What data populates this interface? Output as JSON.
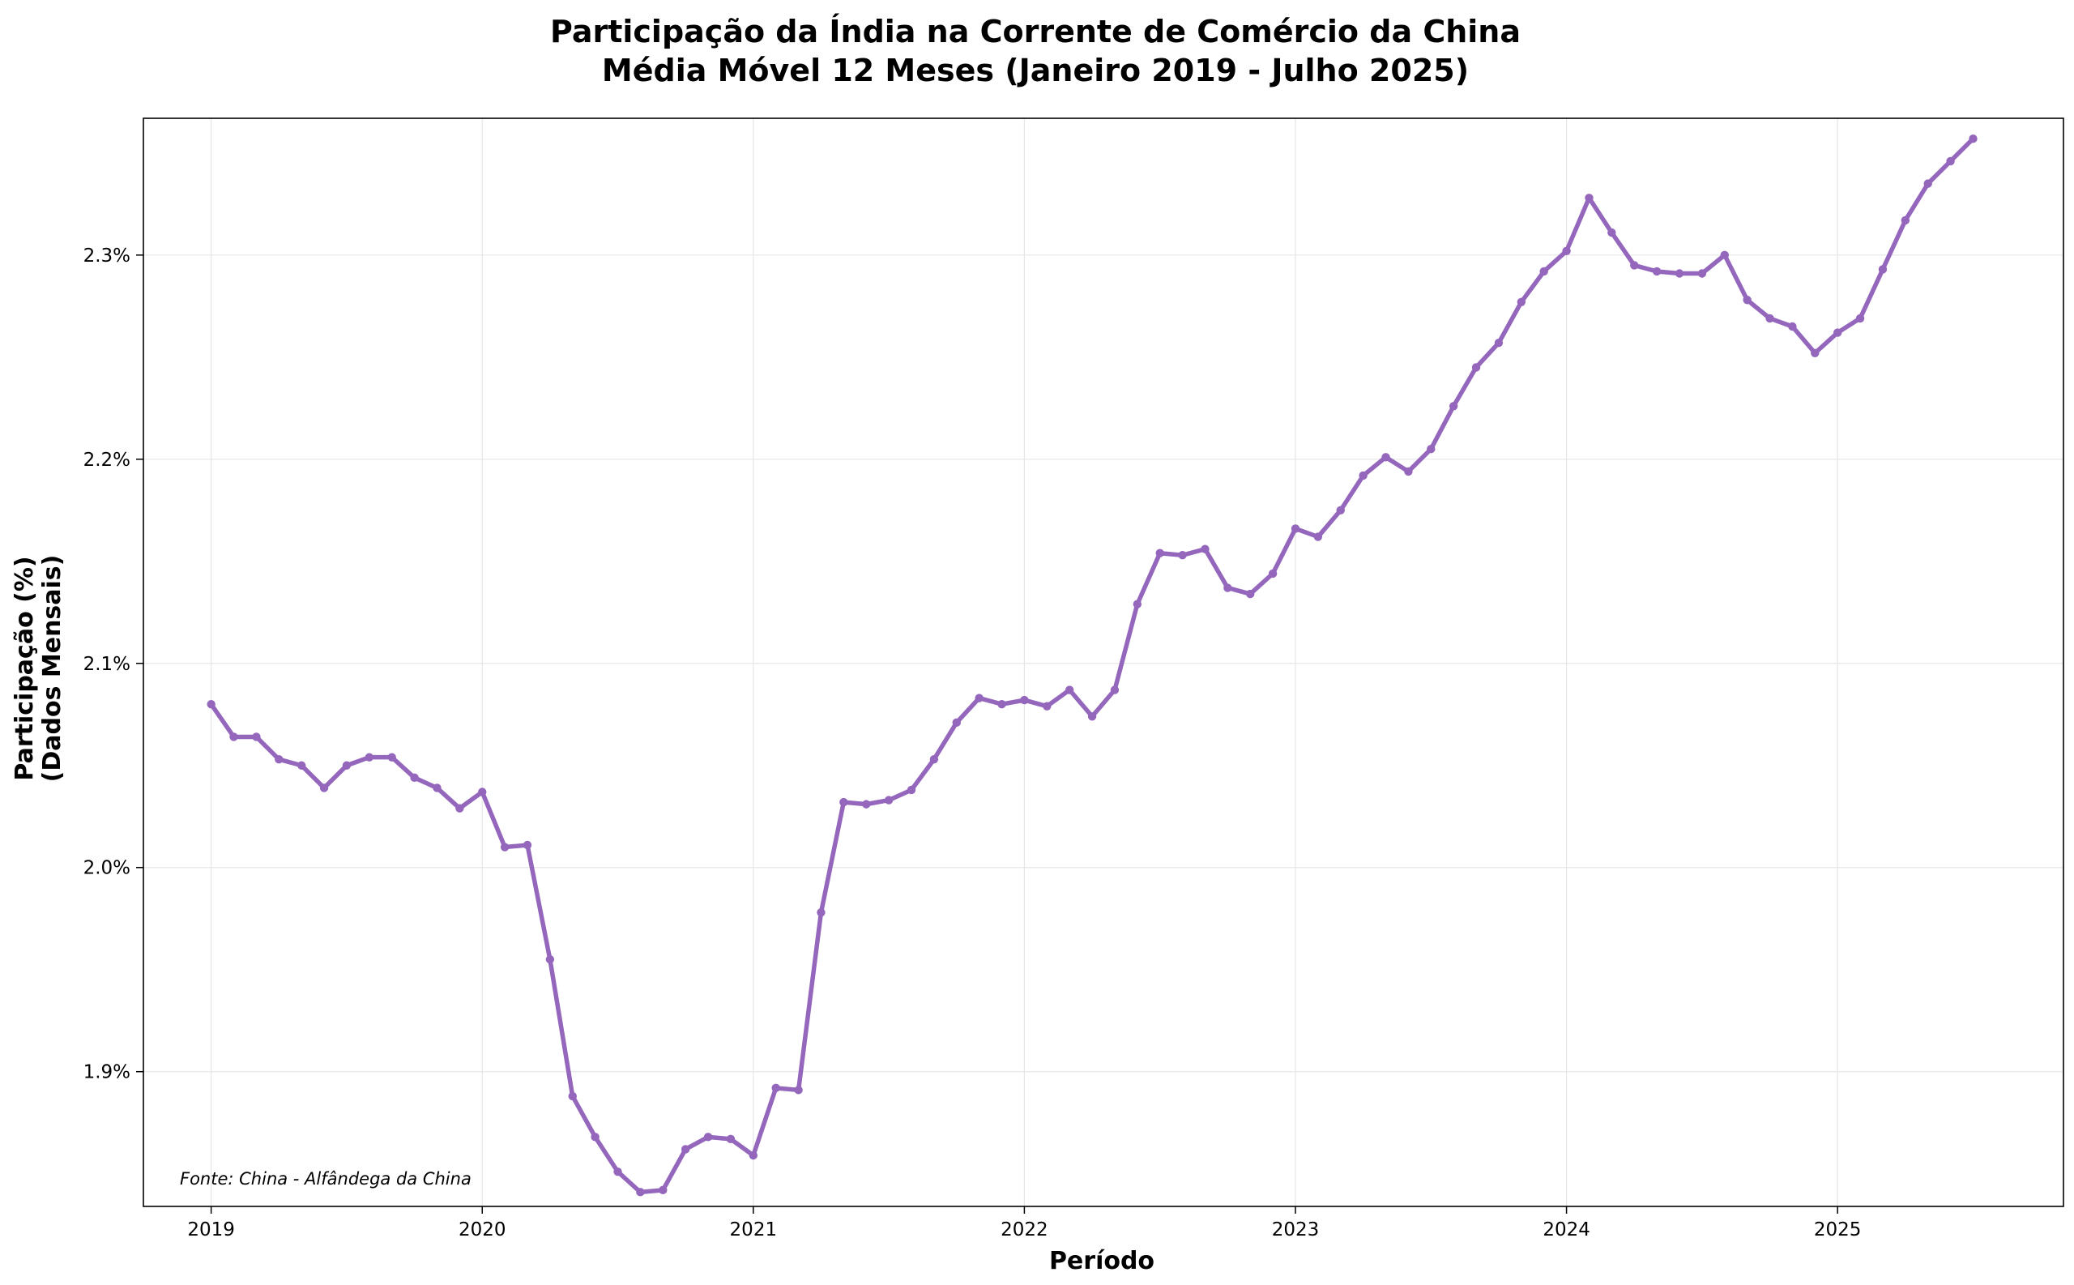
{
  "chart_data": {
    "type": "line",
    "title": "Participação da Índia na Corrente de Comércio da China",
    "subtitle": "Média Móvel 12 Meses (Janeiro 2019 - Julho 2025)",
    "xlabel": "Período",
    "ylabel_line1": "Participação (%)",
    "ylabel_line2": "(Dados Mensais)",
    "source_note": "Fonte: China - Alfândega da China",
    "x_ticks": [
      "2019",
      "2020",
      "2021",
      "2022",
      "2023",
      "2024",
      "2025"
    ],
    "y_ticks": [
      {
        "value": 1.9,
        "label": "1.9%"
      },
      {
        "value": 2.0,
        "label": "2.0%"
      },
      {
        "value": 2.1,
        "label": "2.1%"
      },
      {
        "value": 2.2,
        "label": "2.2%"
      },
      {
        "value": 2.3,
        "label": "2.3%"
      }
    ],
    "ylim": [
      1.834,
      2.367
    ],
    "xlim": [
      "2018-10",
      "2025-11"
    ],
    "grid": true,
    "line_color": "#9467bd",
    "series": [
      {
        "x": [
          "2019-01",
          "2019-02",
          "2019-03",
          "2019-04",
          "2019-05",
          "2019-06",
          "2019-07",
          "2019-08",
          "2019-09",
          "2019-10",
          "2019-11",
          "2019-12",
          "2020-01",
          "2020-02",
          "2020-03",
          "2020-04",
          "2020-05",
          "2020-06",
          "2020-07",
          "2020-08",
          "2020-09",
          "2020-10",
          "2020-11",
          "2020-12",
          "2021-01",
          "2021-02",
          "2021-03",
          "2021-04",
          "2021-05",
          "2021-06",
          "2021-07",
          "2021-08",
          "2021-09",
          "2021-10",
          "2021-11",
          "2021-12",
          "2022-01",
          "2022-02",
          "2022-03",
          "2022-04",
          "2022-05",
          "2022-06",
          "2022-07",
          "2022-08",
          "2022-09",
          "2022-10",
          "2022-11",
          "2022-12",
          "2023-01",
          "2023-02",
          "2023-03",
          "2023-04",
          "2023-05",
          "2023-06",
          "2023-07",
          "2023-08",
          "2023-09",
          "2023-10",
          "2023-11",
          "2023-12",
          "2024-01",
          "2024-02",
          "2024-03",
          "2024-04",
          "2024-05",
          "2024-06",
          "2024-07",
          "2024-08",
          "2024-09",
          "2024-10",
          "2024-11",
          "2024-12",
          "2025-01",
          "2025-02",
          "2025-03",
          "2025-04",
          "2025-05",
          "2025-06",
          "2025-07"
        ],
        "values": [
          2.08,
          2.064,
          2.064,
          2.053,
          2.05,
          2.039,
          2.05,
          2.054,
          2.054,
          2.044,
          2.039,
          2.029,
          2.037,
          2.01,
          2.011,
          1.955,
          1.888,
          1.868,
          1.851,
          1.841,
          1.842,
          1.862,
          1.868,
          1.867,
          1.859,
          1.892,
          1.891,
          1.978,
          2.032,
          2.031,
          2.033,
          2.038,
          2.053,
          2.071,
          2.083,
          2.08,
          2.082,
          2.079,
          2.087,
          2.074,
          2.087,
          2.129,
          2.154,
          2.153,
          2.156,
          2.137,
          2.134,
          2.144,
          2.166,
          2.162,
          2.175,
          2.192,
          2.201,
          2.194,
          2.205,
          2.226,
          2.245,
          2.257,
          2.277,
          2.292,
          2.302,
          2.328,
          2.311,
          2.295,
          2.292,
          2.291,
          2.291,
          2.3,
          2.278,
          2.269,
          2.265,
          2.252,
          2.262,
          2.269,
          2.293,
          2.317,
          2.335,
          2.346,
          2.357
        ]
      }
    ]
  }
}
